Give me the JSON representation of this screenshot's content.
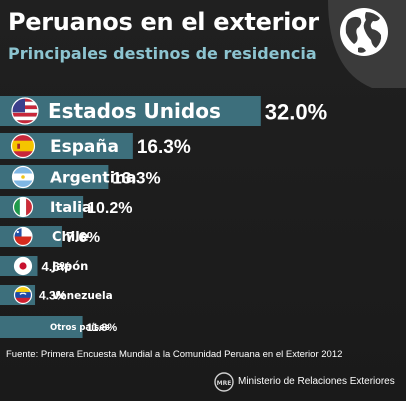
{
  "header": {
    "title": "Peruanos en el exterior",
    "subtitle": "Principales destinos de residencia"
  },
  "footer": {
    "source": "Fuente: Primera Encuesta Mundial a la Comunidad Peruana en el Exterior 2012",
    "ministry": "Ministerio de Relaciones Exteriores",
    "logo_text": "MRE"
  },
  "icons": [
    "globe-icon",
    "flag-usa-icon",
    "flag-spain-icon",
    "flag-argentina-icon",
    "flag-italy-icon",
    "flag-chile-icon",
    "flag-japan-icon",
    "flag-venezuela-icon"
  ],
  "colors": {
    "bar": "#3d6f7c",
    "subtitle": "#8cc4d0",
    "background": "#1d1d1d"
  },
  "chart_data": {
    "type": "bar",
    "orientation": "horizontal",
    "title": "Peruanos en el exterior",
    "subtitle": "Principales destinos de residencia",
    "categories": [
      "Estados Unidos",
      "España",
      "Argentina",
      "Italia",
      "Chile",
      "Japón",
      "Venezuela",
      "Otros países"
    ],
    "values": [
      32.0,
      16.3,
      13.3,
      10.2,
      7.6,
      4.6,
      4.3,
      11.8
    ],
    "value_labels": [
      "32.0%",
      "16.3%",
      "13.3%",
      "10.2%",
      "7.6%",
      "4.6%",
      "4.3%",
      "11.8%"
    ],
    "flags": [
      "flag-usa-icon",
      "flag-spain-icon",
      "flag-argentina-icon",
      "flag-italy-icon",
      "flag-chile-icon",
      "flag-japan-icon",
      "flag-venezuela-icon",
      ""
    ],
    "grid": false,
    "legend": "none"
  }
}
